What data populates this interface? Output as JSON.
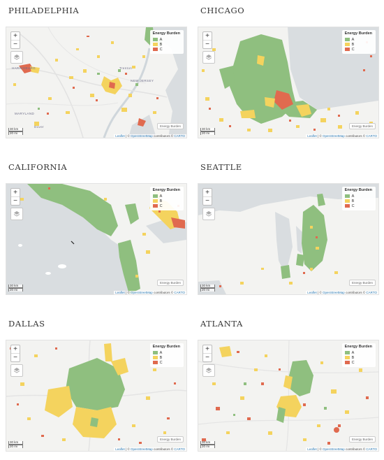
{
  "legend": {
    "title": "Energy Burden",
    "items": [
      {
        "label": "A",
        "color": "#8fbf7f"
      },
      {
        "label": "B",
        "color": "#f4d35e"
      },
      {
        "label": "C",
        "color": "#e06a4f"
      }
    ]
  },
  "controls": {
    "zoom_in": "+",
    "zoom_out": "−",
    "layers_icon": "layers-icon"
  },
  "scale": {
    "km": "30 km",
    "mi": "20 mi"
  },
  "reset_label": "Energy Burden",
  "attribution": {
    "leaflet": "Leaflet",
    "sep1": " | © ",
    "osm": "OpenStreetMap",
    "mid": " contributors © ",
    "carto": "CARTO"
  },
  "panels": [
    {
      "title": "PHILADELPHIA",
      "map_labels": [
        "HARRISBURG",
        "NEW JERSEY",
        "MARYLAND",
        "Trenton",
        "Dover"
      ]
    },
    {
      "title": "CHICAGO",
      "map_labels": []
    },
    {
      "title": "CALIFORNIA",
      "map_labels": []
    },
    {
      "title": "SEATTLE",
      "map_labels": []
    },
    {
      "title": "DALLAS",
      "map_labels": []
    },
    {
      "title": "ATLANTA",
      "map_labels": []
    }
  ]
}
